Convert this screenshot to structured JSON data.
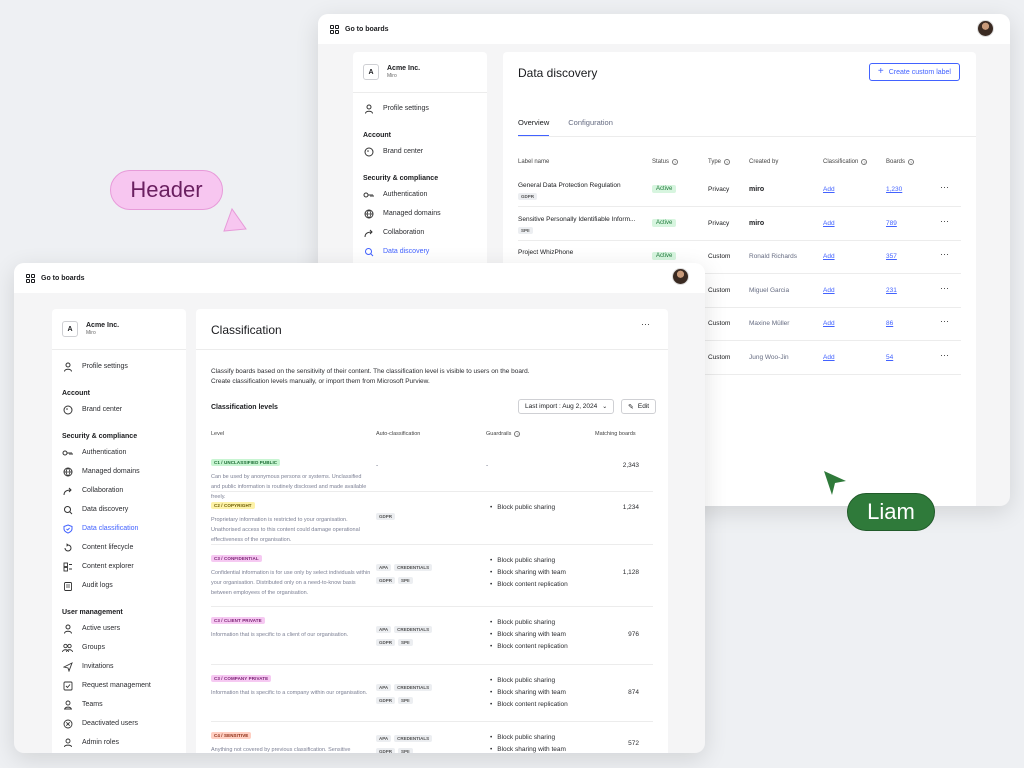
{
  "back_window": {
    "go_to_boards": "Go to boards",
    "org": {
      "badge": "A",
      "name": "Acme Inc.",
      "sub": "Miro"
    },
    "nav": [
      {
        "type": "item",
        "label": "Profile settings",
        "icon": "person-icon"
      },
      {
        "type": "head",
        "label": "Account"
      },
      {
        "type": "item",
        "label": "Brand center",
        "icon": "palette-icon"
      },
      {
        "type": "head",
        "label": "Security & compliance"
      },
      {
        "type": "item",
        "label": "Authentication",
        "icon": "key-icon"
      },
      {
        "type": "item",
        "label": "Managed domains",
        "icon": "globe-icon"
      },
      {
        "type": "item",
        "label": "Collaboration",
        "icon": "share-icon"
      },
      {
        "type": "item",
        "label": "Data discovery",
        "icon": "search-doc-icon",
        "active": true
      }
    ],
    "title": "Data discovery",
    "create_button": "Create custom label",
    "tabs": [
      "Overview",
      "Configuration"
    ],
    "columns": [
      "Label name",
      "Status",
      "Type",
      "Created by",
      "Classification",
      "Boards"
    ],
    "rows": [
      {
        "name": "General Data Protection Regulation",
        "tag": "GDPR",
        "status": "Active",
        "type": "Privacy",
        "created_by": "miro",
        "classification": "Add",
        "boards": "1,230"
      },
      {
        "name": "Sensitive Personally Identifiable Inform...",
        "tag": "SPII",
        "status": "Active",
        "type": "Privacy",
        "created_by": "miro",
        "classification": "Add",
        "boards": "789"
      },
      {
        "name": "Project WhizPhone",
        "tag": "",
        "status": "Active",
        "type": "Custom",
        "created_by": "Ronald Richards",
        "classification": "Add",
        "boards": "357"
      },
      {
        "name": "",
        "tag": "",
        "status": "",
        "type": "Custom",
        "created_by": "Miguel Garcia",
        "classification": "Add",
        "boards": "231"
      },
      {
        "name": "",
        "tag": "",
        "status": "",
        "type": "Custom",
        "created_by": "Maxine Müller",
        "classification": "Add",
        "boards": "86"
      },
      {
        "name": "",
        "tag": "",
        "status": "",
        "type": "Custom",
        "created_by": "Jung Woo-Jin",
        "classification": "Add",
        "boards": "54"
      }
    ]
  },
  "front_window": {
    "go_to_boards": "Go to boards",
    "org": {
      "badge": "A",
      "name": "Acme Inc.",
      "sub": "Miro"
    },
    "nav": [
      {
        "type": "item",
        "label": "Profile settings",
        "icon": "person-icon"
      },
      {
        "type": "head",
        "label": "Account"
      },
      {
        "type": "item",
        "label": "Brand center",
        "icon": "palette-icon"
      },
      {
        "type": "head",
        "label": "Security & compliance"
      },
      {
        "type": "item",
        "label": "Authentication",
        "icon": "key-icon"
      },
      {
        "type": "item",
        "label": "Managed domains",
        "icon": "globe-icon"
      },
      {
        "type": "item",
        "label": "Collaboration",
        "icon": "share-icon"
      },
      {
        "type": "item",
        "label": "Data discovery",
        "icon": "search-doc-icon"
      },
      {
        "type": "item",
        "label": "Data classification",
        "icon": "shield-icon",
        "active": true
      },
      {
        "type": "item",
        "label": "Content lifecycle",
        "icon": "cycle-icon"
      },
      {
        "type": "item",
        "label": "Content explorer",
        "icon": "explorer-icon"
      },
      {
        "type": "item",
        "label": "Audit logs",
        "icon": "clipboard-icon"
      },
      {
        "type": "head",
        "label": "User management"
      },
      {
        "type": "item",
        "label": "Active users",
        "icon": "person-icon"
      },
      {
        "type": "item",
        "label": "Groups",
        "icon": "group-icon"
      },
      {
        "type": "item",
        "label": "Invitations",
        "icon": "send-icon"
      },
      {
        "type": "item",
        "label": "Request management",
        "icon": "checkbox-icon"
      },
      {
        "type": "item",
        "label": "Teams",
        "icon": "team-icon"
      },
      {
        "type": "item",
        "label": "Deactivated users",
        "icon": "x-circle-icon"
      },
      {
        "type": "item",
        "label": "Admin roles",
        "icon": "admin-icon"
      }
    ],
    "title": "Classification",
    "description_1": "Classify boards based on the sensitivity of their content. The classification level is visible to users on the board.",
    "description_2": "Create classification levels manually, or import them from Microsoft Purview.",
    "section_title": "Classification levels",
    "import_select": "Last import : Aug 2, 2024",
    "edit_button": "Edit",
    "columns": [
      "Level",
      "Auto-classification",
      "Guardrails",
      "Matching boards"
    ],
    "levels": [
      {
        "badge": "C1 / UNCLASSIFIED PUBLIC",
        "badge_bg": "#c8f5d2",
        "badge_fg": "#1a6b33",
        "desc": "Can be used by anonymous persons or systems. Unclassified and public information is routinely disclosed and made available freely.",
        "auto": [
          "-"
        ],
        "guardrails": [],
        "guardrail_dash": "-",
        "matching": "2,343"
      },
      {
        "badge": "C2 / COPYRIGHT",
        "badge_bg": "#fdf2a8",
        "badge_fg": "#6b5a00",
        "desc": "Proprietary information is restricted to your organisation. Unathorised access to this content could damage operational effectiveness of the organisation.",
        "auto": [
          "GDPR"
        ],
        "guardrails": [
          "Block public sharing"
        ],
        "guardrail_dash": "",
        "matching": "1,234"
      },
      {
        "badge": "C3 / CONFIDENTIAL",
        "badge_bg": "#f6c9f2",
        "badge_fg": "#7a1f73",
        "desc": "Confidential information is for use only by select individuals within your organisation. Distributed only on a need-to-know basis between employees of the organisation.",
        "auto": [
          "APA",
          "CREDENTIALS",
          "GDPR",
          "SPII"
        ],
        "guardrails": [
          "Block public sharing",
          "Block sharing with team",
          "Block content replication"
        ],
        "guardrail_dash": "",
        "matching": "1,128"
      },
      {
        "badge": "C3 / CLIENT PRIVATE",
        "badge_bg": "#f6c9f2",
        "badge_fg": "#7a1f73",
        "desc": "Information that is specific to a client of our organisation.",
        "auto": [
          "APA",
          "CREDENTIALS",
          "GDPR",
          "SPII"
        ],
        "guardrails": [
          "Block public sharing",
          "Block sharing with team",
          "Block content replication"
        ],
        "guardrail_dash": "",
        "matching": "976"
      },
      {
        "badge": "C3 / COMPANY PRIVATE",
        "badge_bg": "#f6c9f2",
        "badge_fg": "#7a1f73",
        "desc": "Information that is specific to a company within our organisation.",
        "auto": [
          "APA",
          "CREDENTIALS",
          "GDPR",
          "SPII"
        ],
        "guardrails": [
          "Block public sharing",
          "Block sharing with team",
          "Block content replication"
        ],
        "guardrail_dash": "",
        "matching": "874"
      },
      {
        "badge": "C4 / SENSITIVE",
        "badge_bg": "#ffcfc2",
        "badge_fg": "#8a2a12",
        "desc": "Anything not covered by previous classification. Sensitive information requires extreme precautions to ensure the",
        "auto": [
          "APA",
          "CREDENTIALS",
          "GDPR",
          "SPII"
        ],
        "guardrails": [
          "Block public sharing",
          "Block sharing with team"
        ],
        "guardrail_dash": "",
        "matching": "572"
      }
    ]
  },
  "cursors": {
    "header_label": "Header",
    "header_bg": "#f7c6f0",
    "header_fg": "#6a1f60",
    "liam_label": "Liam",
    "liam_bg": "#2f7a3a",
    "liam_fg": "#ffffff"
  }
}
